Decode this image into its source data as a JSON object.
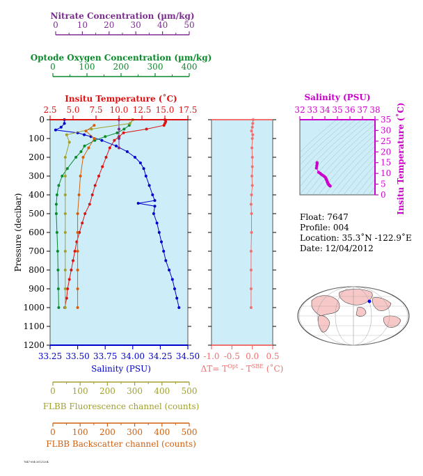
{
  "colors": {
    "nitrate": "#7b2d8e",
    "oxygen": "#0a8a2a",
    "temperature": "#dd1111",
    "salinity": "#0000cc",
    "deltaT": "#f07070",
    "fluorescence": "#a0a030",
    "backscatter": "#d06010",
    "ts_salinity": "#cc00cc",
    "plot_bg": "#cdeef8",
    "map_land": "#f6c8c8",
    "float_marker": "#0000ff"
  },
  "axes": {
    "nitrate": {
      "label": "Nitrate Concentration (µm/kg)",
      "ticks": [
        "0",
        "10",
        "20",
        "30",
        "40",
        "50"
      ]
    },
    "oxygen": {
      "label": "Optode Oxygen Concentration (µm/kg)",
      "ticks": [
        "0",
        "100",
        "200",
        "300",
        "400"
      ]
    },
    "temperature": {
      "label": "Insitu Temperature (˚C)",
      "ticks": [
        "2.5",
        "5.0",
        "7.5",
        "10.0",
        "12.5",
        "15.0",
        "17.5"
      ]
    },
    "pressure": {
      "label": "Pressure (decibar)",
      "ticks": [
        "0",
        "100",
        "200",
        "300",
        "400",
        "500",
        "600",
        "700",
        "800",
        "900",
        "1000",
        "1100",
        "1200"
      ]
    },
    "salinity": {
      "label": "Salinity (PSU)",
      "ticks": [
        "33.25",
        "33.50",
        "33.75",
        "34.00",
        "34.25",
        "34.50"
      ]
    },
    "deltaT": {
      "label_main": "ΔT= T",
      "sup1": "Opt",
      "label_mid": " - T",
      "sup2": "SBE",
      "label_end": " (˚C)",
      "ticks": [
        "-1.0",
        "-0.5",
        "0.0",
        "0.5"
      ]
    },
    "fluorescence": {
      "label": "FLBB Fluorescence channel (counts)",
      "ticks": [
        "0",
        "100",
        "200",
        "300",
        "400",
        "500"
      ]
    },
    "backscatter": {
      "label": "FLBB Backscatter channel (counts)",
      "ticks": [
        "0",
        "100",
        "200",
        "300",
        "400",
        "500"
      ]
    },
    "ts_salinity": {
      "label": "Salinity (PSU)",
      "ticks": [
        "32",
        "33",
        "34",
        "35",
        "36",
        "37",
        "38"
      ]
    },
    "ts_temperature": {
      "label": "Insitu Temperature (˚C)",
      "ticks": [
        "0",
        "5",
        "10",
        "15",
        "20",
        "25",
        "30",
        "35"
      ]
    }
  },
  "info": {
    "float": "Float:  7647",
    "profile": "Profile:  004",
    "location": "Location:  35.3˚N  -122.9˚E",
    "date": "Date:  12/04/2012"
  },
  "footer_stamp": "7647-004-20121204",
  "chart_data": [
    {
      "type": "line",
      "name": "profile-plot",
      "y_axis": "pressure",
      "ylim": [
        1200,
        0
      ],
      "series": [
        {
          "name": "Insitu Temperature",
          "xlim": [
            2.5,
            17.5
          ],
          "points": [
            [
              15.0,
              0
            ],
            [
              15.1,
              10
            ],
            [
              15.0,
              20
            ],
            [
              14.9,
              30
            ],
            [
              13.0,
              50
            ],
            [
              10.5,
              70
            ],
            [
              10.0,
              90
            ],
            [
              9.5,
              110
            ],
            [
              9.0,
              150
            ],
            [
              8.6,
              200
            ],
            [
              8.2,
              250
            ],
            [
              7.8,
              300
            ],
            [
              7.4,
              350
            ],
            [
              7.1,
              400
            ],
            [
              6.8,
              450
            ],
            [
              6.3,
              500
            ],
            [
              6.0,
              550
            ],
            [
              5.7,
              600
            ],
            [
              5.4,
              650
            ],
            [
              5.2,
              700
            ],
            [
              5.0,
              750
            ],
            [
              4.8,
              800
            ],
            [
              4.6,
              850
            ],
            [
              4.4,
              900
            ],
            [
              4.3,
              950
            ],
            [
              4.1,
              1000
            ]
          ]
        },
        {
          "name": "Salinity",
          "xlim": [
            33.25,
            34.5
          ],
          "points": [
            [
              33.38,
              0
            ],
            [
              33.38,
              20
            ],
            [
              33.35,
              40
            ],
            [
              33.3,
              55
            ],
            [
              33.5,
              70
            ],
            [
              33.56,
              80
            ],
            [
              33.62,
              90
            ],
            [
              33.72,
              110
            ],
            [
              33.85,
              140
            ],
            [
              33.95,
              170
            ],
            [
              34.02,
              200
            ],
            [
              34.07,
              230
            ],
            [
              34.1,
              260
            ],
            [
              34.12,
              300
            ],
            [
              34.15,
              350
            ],
            [
              34.18,
              400
            ],
            [
              34.2,
              430
            ],
            [
              34.05,
              445
            ],
            [
              34.2,
              460
            ],
            [
              34.19,
              500
            ],
            [
              34.22,
              550
            ],
            [
              34.24,
              600
            ],
            [
              34.26,
              650
            ],
            [
              34.28,
              700
            ],
            [
              34.3,
              750
            ],
            [
              34.33,
              800
            ],
            [
              34.36,
              850
            ],
            [
              34.38,
              900
            ],
            [
              34.4,
              950
            ],
            [
              34.42,
              1000
            ]
          ]
        },
        {
          "name": "Optode Oxygen",
          "xlim": [
            0,
            400
          ],
          "points": [
            [
              240,
              0
            ],
            [
              230,
              30
            ],
            [
              215,
              50
            ],
            [
              195,
              70
            ],
            [
              160,
              90
            ],
            [
              130,
              110
            ],
            [
              100,
              140
            ],
            [
              90,
              170
            ],
            [
              75,
              200
            ],
            [
              50,
              260
            ],
            [
              35,
              300
            ],
            [
              25,
              350
            ],
            [
              20,
              400
            ],
            [
              18,
              450
            ],
            [
              18,
              500
            ],
            [
              20,
              600
            ],
            [
              22,
              700
            ],
            [
              23,
              800
            ],
            [
              24,
              900
            ],
            [
              25,
              1000
            ]
          ]
        },
        {
          "name": "Nitrate",
          "xlim": [
            0,
            50
          ],
          "points": [
            [
              25,
              0
            ],
            [
              25,
              50
            ],
            [
              25,
              100
            ],
            [
              25,
              150
            ]
          ]
        },
        {
          "name": "FLBB Fluorescence",
          "xlim": [
            0,
            500
          ],
          "points": [
            [
              300,
              0
            ],
            [
              290,
              20
            ],
            [
              150,
              50
            ],
            [
              60,
              80
            ],
            [
              70,
              120
            ],
            [
              55,
              200
            ],
            [
              55,
              300
            ],
            [
              55,
              400
            ],
            [
              55,
              500
            ],
            [
              55,
              600
            ],
            [
              55,
              700
            ],
            [
              55,
              800
            ],
            [
              55,
              900
            ],
            [
              55,
              1000
            ]
          ]
        },
        {
          "name": "FLBB Backscatter",
          "xlim": [
            0,
            500
          ],
          "points": [
            [
              160,
              30
            ],
            [
              130,
              60
            ],
            [
              160,
              100
            ],
            [
              140,
              150
            ],
            [
              120,
              200
            ],
            [
              110,
              300
            ],
            [
              105,
              400
            ],
            [
              100,
              500
            ],
            [
              100,
              600
            ],
            [
              100,
              700
            ],
            [
              100,
              800
            ],
            [
              100,
              900
            ],
            [
              100,
              1000
            ]
          ]
        }
      ]
    },
    {
      "type": "line",
      "name": "deltaT-plot",
      "xlim": [
        -1.0,
        0.5
      ],
      "ylim": [
        1200,
        0
      ],
      "series": [
        {
          "name": "ΔT",
          "points": [
            [
              0.02,
              0
            ],
            [
              0.01,
              20
            ],
            [
              0.0,
              40
            ],
            [
              -0.02,
              60
            ],
            [
              0.01,
              80
            ],
            [
              0.0,
              100
            ],
            [
              -0.01,
              150
            ],
            [
              0.0,
              200
            ],
            [
              0.0,
              250
            ],
            [
              -0.01,
              300
            ],
            [
              0.0,
              350
            ],
            [
              -0.02,
              400
            ],
            [
              -0.03,
              450
            ],
            [
              -0.02,
              500
            ],
            [
              -0.02,
              600
            ],
            [
              -0.03,
              700
            ],
            [
              -0.03,
              800
            ],
            [
              -0.03,
              900
            ],
            [
              -0.03,
              1000
            ]
          ]
        }
      ]
    },
    {
      "type": "scatter",
      "name": "ts-diagram",
      "xlim": [
        32,
        38
      ],
      "ylim": [
        0,
        35
      ],
      "series": [
        {
          "name": "T-S",
          "points": [
            [
              33.38,
              15.0
            ],
            [
              33.38,
              14.5
            ],
            [
              33.35,
              13.5
            ],
            [
              33.32,
              12.5
            ],
            [
              33.5,
              10.5
            ],
            [
              33.62,
              10.0
            ],
            [
              33.72,
              9.5
            ],
            [
              33.85,
              9.0
            ],
            [
              33.95,
              8.6
            ],
            [
              34.02,
              8.2
            ],
            [
              34.07,
              7.8
            ],
            [
              34.1,
              7.4
            ],
            [
              34.12,
              7.1
            ],
            [
              34.15,
              6.8
            ],
            [
              34.18,
              6.3
            ],
            [
              34.2,
              6.0
            ],
            [
              34.22,
              5.7
            ],
            [
              34.24,
              5.4
            ],
            [
              34.26,
              5.2
            ],
            [
              34.28,
              5.0
            ],
            [
              34.3,
              4.8
            ],
            [
              34.33,
              4.6
            ],
            [
              34.36,
              4.4
            ],
            [
              34.38,
              4.3
            ],
            [
              34.42,
              4.1
            ]
          ]
        }
      ]
    }
  ]
}
